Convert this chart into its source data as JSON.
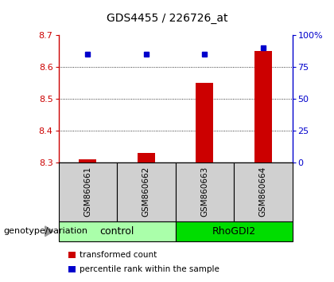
{
  "title": "GDS4455 / 226726_at",
  "samples": [
    "GSM860661",
    "GSM860662",
    "GSM860663",
    "GSM860664"
  ],
  "red_values": [
    8.31,
    8.33,
    8.55,
    8.65
  ],
  "blue_percentiles": [
    85,
    85,
    85,
    90
  ],
  "ylim_left": [
    8.3,
    8.7
  ],
  "ylim_right": [
    0,
    100
  ],
  "yticks_left": [
    8.3,
    8.4,
    8.5,
    8.6,
    8.7
  ],
  "yticks_right": [
    0,
    25,
    50,
    75,
    100
  ],
  "ytick_right_labels": [
    "0",
    "25",
    "50",
    "75",
    "100%"
  ],
  "bar_color": "#cc0000",
  "dot_color": "#0000cc",
  "bar_baseline": 8.3,
  "bar_width": 0.3,
  "groups": [
    {
      "label": "control",
      "samples": [
        0,
        1
      ],
      "color": "#aaffaa"
    },
    {
      "label": "RhoGDI2",
      "samples": [
        2,
        3
      ],
      "color": "#00dd00"
    }
  ],
  "group_label": "genotype/variation",
  "legend_items": [
    {
      "color": "#cc0000",
      "label": "transformed count"
    },
    {
      "color": "#0000cc",
      "label": "percentile rank within the sample"
    }
  ],
  "sample_area_color": "#d0d0d0",
  "dot_grid_ticks": [
    8.4,
    8.5,
    8.6
  ],
  "title_fontsize": 10,
  "axis_label_fontsize": 8,
  "tick_fontsize": 8,
  "sample_fontsize": 7.5,
  "group_fontsize": 9,
  "legend_fontsize": 7.5,
  "genotype_fontsize": 8
}
